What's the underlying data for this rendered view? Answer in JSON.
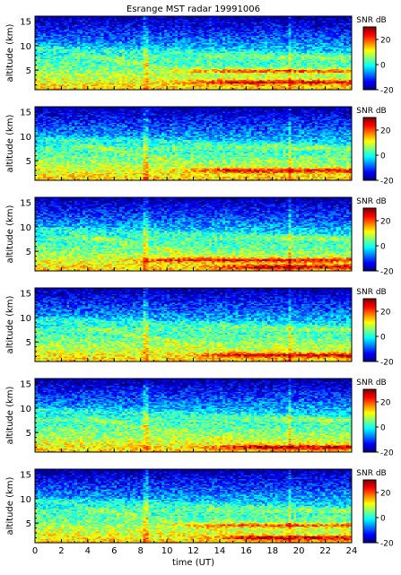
{
  "chart_data": [
    {
      "type": "heatmap",
      "title": "Esrange MST radar 19991006",
      "ylabel": "altitude (km)",
      "xlabel": "",
      "xlim": [
        0,
        24
      ],
      "ylim": [
        1,
        16
      ],
      "yticks": [
        5,
        10,
        15
      ],
      "xticks": [
        0,
        2,
        4,
        6,
        8,
        10,
        12,
        14,
        16,
        18,
        20,
        22,
        24
      ],
      "colorbar": {
        "label": "SNR dB",
        "range": [
          -20,
          30
        ],
        "ticks": [
          20,
          0,
          -20
        ]
      },
      "colormap": "jet",
      "features": {
        "strong_layers": [
          {
            "t_start": 12,
            "alt_km": 4.8
          },
          {
            "t_start": 12,
            "alt_km": 2.5
          }
        ]
      }
    },
    {
      "type": "heatmap",
      "title": "",
      "ylabel": "altitude (km)",
      "xlabel": "",
      "xlim": [
        0,
        24
      ],
      "ylim": [
        1,
        16
      ],
      "yticks": [
        5,
        10,
        15
      ],
      "xticks": [
        0,
        2,
        4,
        6,
        8,
        10,
        12,
        14,
        16,
        18,
        20,
        22,
        24
      ],
      "colorbar": {
        "label": "SNR dB",
        "range": [
          -20,
          30
        ],
        "ticks": [
          20,
          0,
          -20
        ]
      },
      "colormap": "jet",
      "features": {
        "strong_layers": [
          {
            "t_start": 12,
            "alt_km": 3.0
          }
        ]
      }
    },
    {
      "type": "heatmap",
      "title": "",
      "ylabel": "altitude (km)",
      "xlabel": "",
      "xlim": [
        0,
        24
      ],
      "ylim": [
        1,
        16
      ],
      "yticks": [
        5,
        10,
        15
      ],
      "xticks": [
        0,
        2,
        4,
        6,
        8,
        10,
        12,
        14,
        16,
        18,
        20,
        22,
        24
      ],
      "colorbar": {
        "label": "SNR dB",
        "range": [
          -20,
          30
        ],
        "ticks": [
          20,
          0,
          -20
        ]
      },
      "colormap": "jet",
      "features": {
        "strong_layers": [
          {
            "t_start": 8,
            "alt_km": 3.2
          },
          {
            "t_start": 14,
            "alt_km": 1.8
          }
        ]
      }
    },
    {
      "type": "heatmap",
      "title": "",
      "ylabel": "altitude (km)",
      "xlabel": "",
      "xlim": [
        0,
        24
      ],
      "ylim": [
        1,
        16
      ],
      "yticks": [
        5,
        10,
        15
      ],
      "xticks": [
        0,
        2,
        4,
        6,
        8,
        10,
        12,
        14,
        16,
        18,
        20,
        22,
        24
      ],
      "colorbar": {
        "label": "SNR dB",
        "range": [
          -20,
          30
        ],
        "ticks": [
          20,
          0,
          -20
        ]
      },
      "colormap": "jet",
      "features": {
        "strong_layers": [
          {
            "t_start": 13,
            "alt_km": 2.3
          }
        ]
      }
    },
    {
      "type": "heatmap",
      "title": "",
      "ylabel": "altitude (km)",
      "xlabel": "",
      "xlim": [
        0,
        24
      ],
      "ylim": [
        1,
        16
      ],
      "yticks": [
        5,
        10,
        15
      ],
      "xticks": [
        0,
        2,
        4,
        6,
        8,
        10,
        12,
        14,
        16,
        18,
        20,
        22,
        24
      ],
      "colorbar": {
        "label": "SNR dB",
        "range": [
          -20,
          30
        ],
        "ticks": [
          20,
          0,
          -20
        ]
      },
      "colormap": "jet",
      "features": {
        "strong_layers": [
          {
            "t_start": 14,
            "alt_km": 2.0
          }
        ]
      }
    },
    {
      "type": "heatmap",
      "title": "",
      "ylabel": "altitude (km)",
      "xlabel": "time (UT)",
      "xlim": [
        0,
        24
      ],
      "ylim": [
        1,
        16
      ],
      "yticks": [
        5,
        10,
        15
      ],
      "xticks": [
        0,
        2,
        4,
        6,
        8,
        10,
        12,
        14,
        16,
        18,
        20,
        22,
        24
      ],
      "colorbar": {
        "label": "SNR dB",
        "range": [
          -20,
          30
        ],
        "ticks": [
          20,
          0,
          -20
        ]
      },
      "colormap": "jet",
      "features": {
        "strong_layers": [
          {
            "t_start": 12,
            "alt_km": 4.5
          },
          {
            "t_start": 14,
            "alt_km": 2.0
          }
        ]
      }
    }
  ]
}
